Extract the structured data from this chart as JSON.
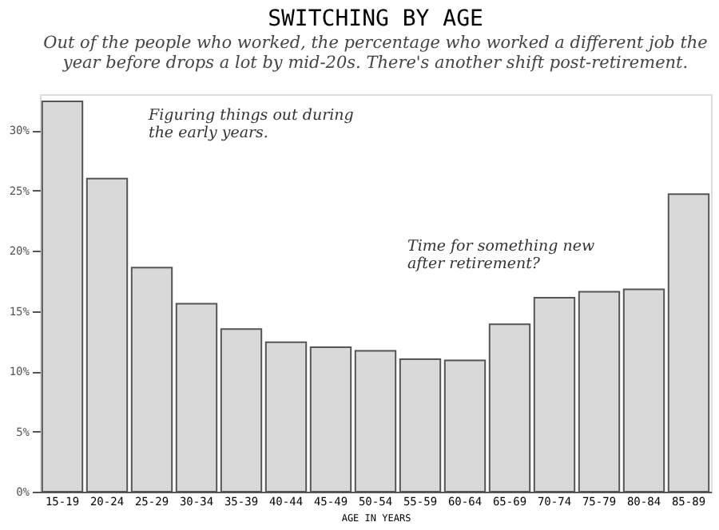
{
  "chart_data": {
    "type": "bar",
    "title": "SWITCHING BY AGE",
    "subtitle": [
      "Out of the people who worked, the percentage who worked a different job the",
      "year before drops a lot by mid-20s. There's another shift post-retirement."
    ],
    "xlabel": "AGE IN YEARS",
    "categories": [
      "15-19",
      "20-24",
      "25-29",
      "30-34",
      "35-39",
      "40-44",
      "45-49",
      "50-54",
      "55-59",
      "60-64",
      "65-69",
      "70-74",
      "75-79",
      "80-84",
      "85-89"
    ],
    "values": [
      32.4,
      26.0,
      18.6,
      15.6,
      13.5,
      12.4,
      12.0,
      11.7,
      11.0,
      10.9,
      13.9,
      16.1,
      16.6,
      16.8,
      24.7
    ],
    "color": "#d9d9d9",
    "ylim": [
      0,
      33
    ],
    "yticks": [
      {
        "value": 0,
        "label": "0%"
      },
      {
        "value": 5,
        "label": "5%"
      },
      {
        "value": 10,
        "label": "10%"
      },
      {
        "value": 15,
        "label": "15%"
      },
      {
        "value": 20,
        "label": "20%"
      },
      {
        "value": 25,
        "label": "25%"
      },
      {
        "value": 30,
        "label": "30%"
      }
    ],
    "grid": false,
    "annotations": [
      "Figuring things out during the early years.",
      "Time for something new after retirement?"
    ]
  }
}
